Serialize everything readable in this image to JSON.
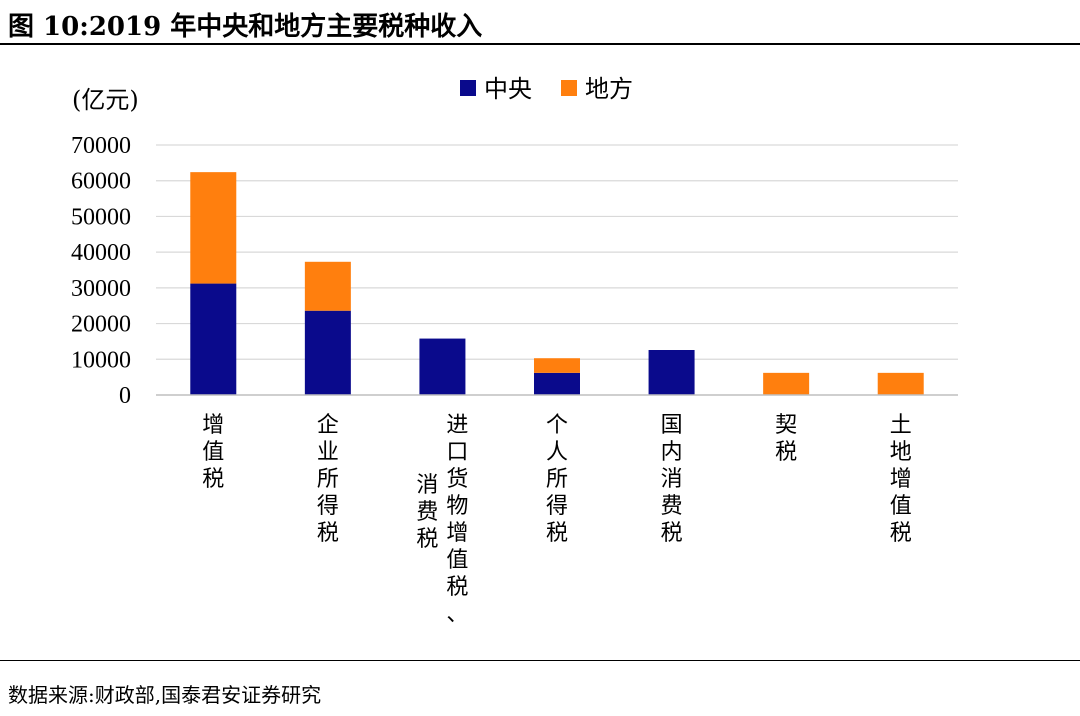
{
  "figure": {
    "title": "图 10:2019 年中央和地方主要税种收入",
    "source": "数据来源:财政部,国泰君安证券研究"
  },
  "colors": {
    "central": "#0A0A8C",
    "local": "#FF7F0E",
    "grid": "#D9D9D9"
  },
  "chart_data": {
    "type": "bar",
    "stacked": true,
    "unit_label": "(亿元)",
    "categories": [
      "增值税",
      "企业所得税",
      "进口货物增值税、消费税",
      "个人所得税",
      "国内消费税",
      "契税",
      "土地增值税"
    ],
    "category_label_columns": [
      [
        "增值税"
      ],
      [
        "企业所得税"
      ],
      [
        "进口货物增值税、",
        "消费税"
      ],
      [
        "个人所得税"
      ],
      [
        "国内消费税"
      ],
      [
        "契税"
      ],
      [
        "土地增值税"
      ]
    ],
    "series": [
      {
        "name": "中央",
        "values": [
          31200,
          23600,
          15800,
          6200,
          12600,
          0,
          0
        ]
      },
      {
        "name": "地方",
        "values": [
          31200,
          13700,
          0,
          4100,
          0,
          6200,
          6200
        ]
      }
    ],
    "yticks": [
      "0",
      "10000",
      "20000",
      "30000",
      "40000",
      "50000",
      "60000",
      "70000"
    ],
    "ylim": [
      0,
      70000
    ],
    "legend": "top-center",
    "grid": true
  }
}
